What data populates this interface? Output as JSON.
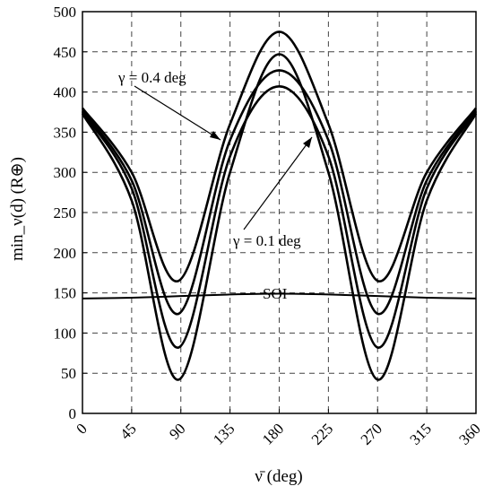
{
  "chart_data": {
    "type": "line",
    "xlabel": "ν̄ (deg)",
    "ylabel": "min_ν(d) (R⊕)",
    "xlim": [
      0,
      360
    ],
    "ylim": [
      0,
      500
    ],
    "xticks": [
      0,
      45,
      90,
      135,
      180,
      225,
      270,
      315,
      360
    ],
    "yticks": [
      0,
      50,
      100,
      150,
      200,
      250,
      300,
      350,
      400,
      450,
      500
    ],
    "grid": true,
    "series": [
      {
        "x": [
          0,
          45,
          88,
          135,
          180,
          225,
          270,
          315,
          360
        ],
        "values": [
          380,
          300,
          165,
          360,
          475,
          360,
          165,
          300,
          380
        ]
      },
      {
        "x": [
          0,
          45,
          88,
          135,
          180,
          225,
          270,
          315,
          360
        ],
        "values": [
          377,
          290,
          124,
          340,
          427,
          340,
          124,
          290,
          377
        ]
      },
      {
        "x": [
          0,
          45,
          88,
          135,
          180,
          225,
          270,
          315,
          360
        ],
        "values": [
          375,
          280,
          82,
          320,
          407,
          320,
          82,
          280,
          375
        ]
      },
      {
        "x": [
          0,
          45,
          88,
          135,
          180,
          225,
          270,
          315,
          360
        ],
        "values": [
          373,
          265,
          42,
          300,
          447,
          300,
          42,
          265,
          373
        ]
      },
      {
        "name": "SOI",
        "x": [
          0,
          45,
          90,
          135,
          180,
          225,
          270,
          315,
          360
        ],
        "values": [
          143,
          144,
          146,
          148,
          149,
          148,
          146,
          144,
          143
        ]
      }
    ],
    "annotations": [
      {
        "text": "γ = 0.4 deg",
        "arrow_to": [
          117,
          338
        ]
      },
      {
        "text": "γ = 0.1 deg",
        "arrow_to": [
          202,
          345
        ]
      },
      {
        "text": "SOI"
      }
    ]
  }
}
